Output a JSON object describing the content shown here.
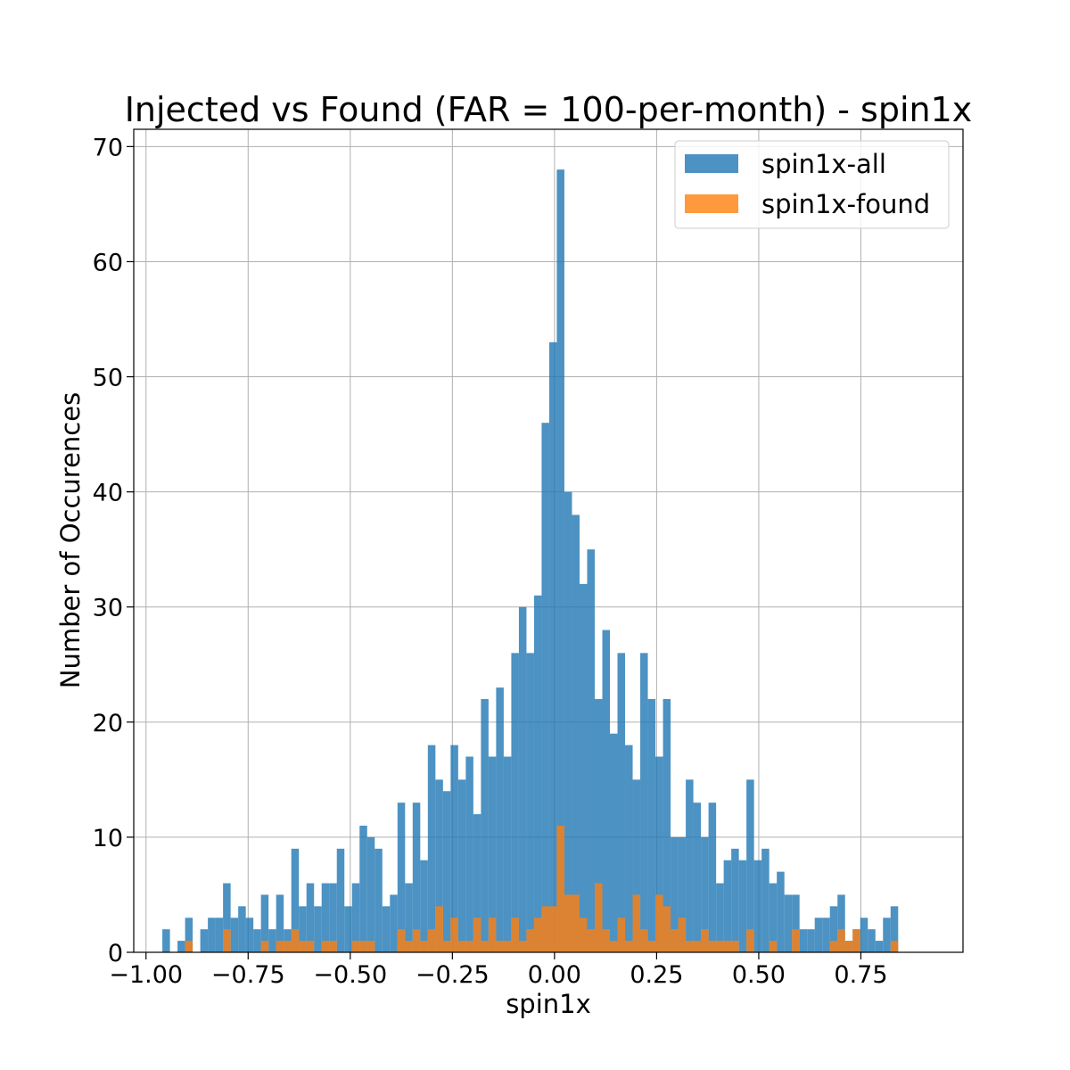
{
  "chart_data": {
    "type": "bar",
    "title": "Injected vs Found (FAR = 100-per-month) - spin1x",
    "xlabel": "spin1x",
    "ylabel": "Number of Occurences",
    "xlim": [
      -1.03,
      1.0
    ],
    "ylim": [
      0,
      71.5
    ],
    "xticks": [
      -1.0,
      -0.75,
      -0.5,
      -0.25,
      0.0,
      0.25,
      0.5,
      0.75
    ],
    "xtick_labels": [
      "−1.00",
      "−0.75",
      "−0.50",
      "−0.25",
      "0.00",
      "0.25",
      "0.50",
      "0.75"
    ],
    "yticks": [
      0,
      10,
      20,
      30,
      40,
      50,
      60,
      70
    ],
    "ytick_labels": [
      "0",
      "10",
      "20",
      "30",
      "40",
      "50",
      "60",
      "70"
    ],
    "grid": true,
    "legend_position": "top-right",
    "bin_start": -0.96,
    "bin_width": 0.01857,
    "series": [
      {
        "name": "spin1x-all",
        "color": "#1f77b4",
        "values": [
          2,
          0,
          1,
          3,
          0,
          2,
          3,
          3,
          6,
          3,
          4,
          3,
          2,
          5,
          2,
          5,
          2,
          9,
          4,
          6,
          4,
          6,
          6,
          9,
          4,
          6,
          11,
          10,
          9,
          4,
          5,
          13,
          6,
          13,
          8,
          18,
          15,
          14,
          18,
          15,
          17,
          12,
          22,
          17,
          23,
          17,
          26,
          30,
          26,
          31,
          46,
          53,
          68,
          40,
          38,
          32,
          35,
          22,
          28,
          19,
          26,
          18,
          15,
          26,
          22,
          17,
          22,
          10,
          10,
          15,
          13,
          10,
          13,
          6,
          8,
          9,
          8,
          15,
          8,
          9,
          6,
          7,
          5,
          5,
          2,
          2,
          3,
          3,
          4,
          5,
          1,
          2,
          3,
          2,
          1,
          3,
          4
        ]
      },
      {
        "name": "spin1x-found",
        "color": "#ff7f0e",
        "values": [
          0,
          0,
          0,
          1,
          0,
          0,
          0,
          0,
          2,
          0,
          0,
          0,
          0,
          1,
          0,
          1,
          1,
          2,
          1,
          1,
          0,
          1,
          1,
          0,
          0,
          1,
          1,
          1,
          0,
          0,
          0,
          2,
          1,
          2,
          1,
          2,
          4,
          1,
          3,
          1,
          1,
          3,
          1,
          3,
          1,
          1,
          3,
          1,
          2,
          3,
          4,
          4,
          11,
          5,
          5,
          3,
          2,
          6,
          2,
          1,
          3,
          1,
          5,
          2,
          1,
          5,
          4,
          2,
          3,
          1,
          1,
          2,
          1,
          1,
          1,
          1,
          0,
          2,
          0,
          0,
          1,
          0,
          0,
          2,
          0,
          0,
          0,
          0,
          1,
          2,
          1,
          2,
          0,
          0,
          0,
          0,
          1
        ]
      }
    ]
  }
}
